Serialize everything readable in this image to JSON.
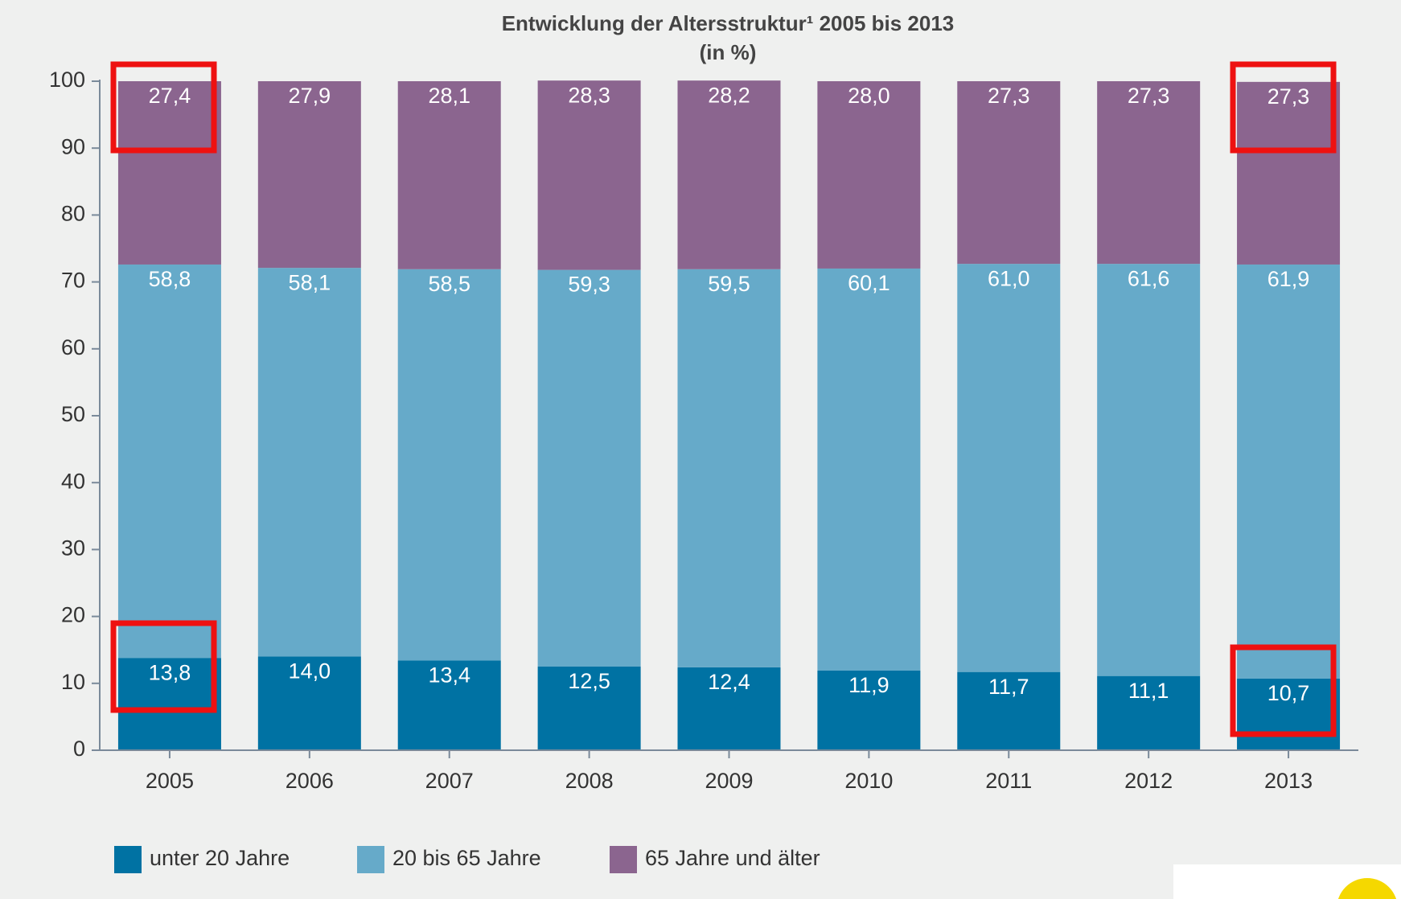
{
  "chart_data": {
    "type": "stacked_bar",
    "title": "Entwicklung der Altersstruktur¹ 2005 bis 2013",
    "subtitle": "(in %)",
    "categories": [
      "2005",
      "2006",
      "2007",
      "2008",
      "2009",
      "2010",
      "2011",
      "2012",
      "2013"
    ],
    "series": [
      {
        "name": "unter 20 Jahre",
        "color": "#0072a3",
        "values": [
          13.8,
          14.0,
          13.4,
          12.5,
          12.4,
          11.9,
          11.7,
          11.1,
          10.7
        ],
        "value_labels": [
          "13,8",
          "14,0",
          "13,4",
          "12,5",
          "12,4",
          "11,9",
          "11,7",
          "11,1",
          "10,7"
        ]
      },
      {
        "name": "20 bis 65 Jahre",
        "color": "#66aac9",
        "values": [
          58.8,
          58.1,
          58.5,
          59.3,
          59.5,
          60.1,
          61.0,
          61.6,
          61.9
        ],
        "value_labels": [
          "58,8",
          "58,1",
          "58,5",
          "59,3",
          "59,5",
          "60,1",
          "61,0",
          "61,6",
          "61,9"
        ]
      },
      {
        "name": "65 Jahre und älter",
        "color": "#8b658f",
        "values": [
          27.4,
          27.9,
          28.1,
          28.3,
          28.2,
          28.0,
          27.3,
          27.3,
          27.3
        ],
        "value_labels": [
          "27,4",
          "27,9",
          "28,1",
          "28,3",
          "28,2",
          "28,0",
          "27,3",
          "27,3",
          "27,3"
        ]
      }
    ],
    "ylim": [
      0,
      100
    ],
    "yticks": [
      0,
      10,
      20,
      30,
      40,
      50,
      60,
      70,
      80,
      90,
      100
    ],
    "legend": "bottom",
    "grid": false
  }
}
